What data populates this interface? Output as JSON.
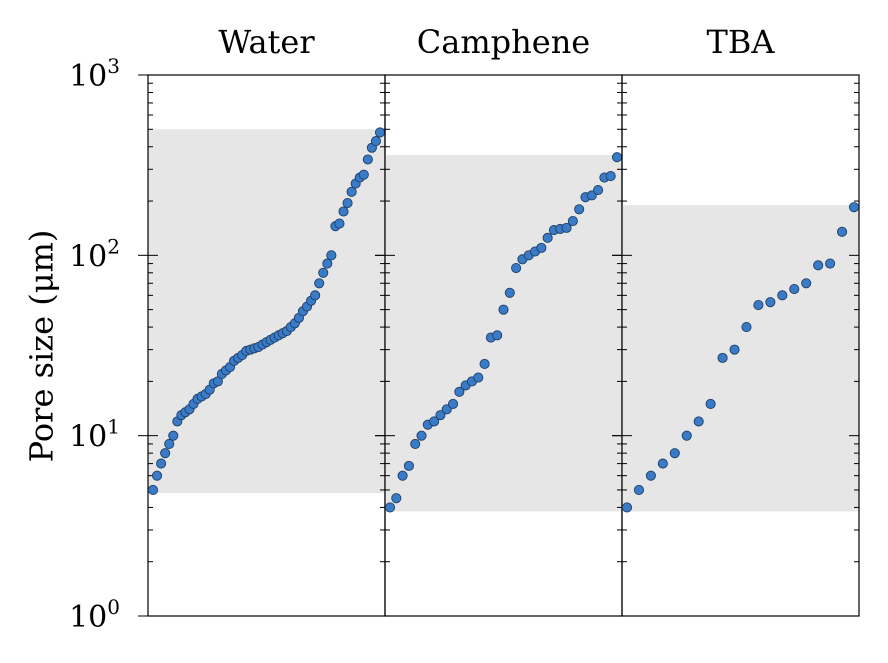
{
  "chart_data": {
    "type": "scatter",
    "y_scale": "log",
    "ylim": [
      1,
      1000
    ],
    "ylabel": "Pore size (μm)",
    "yticks": [
      {
        "value": 1,
        "base": "10",
        "exp": "0"
      },
      {
        "value": 10,
        "base": "10",
        "exp": "1"
      },
      {
        "value": 100,
        "base": "10",
        "exp": "2"
      },
      {
        "value": 1000,
        "base": "10",
        "exp": "3"
      }
    ],
    "marker_color": "#3a7bc8",
    "marker_edge_color": "#1f3f66",
    "band_color": "#e6e6e6",
    "panels": [
      {
        "title": "Water",
        "range": [
          4.8,
          500
        ],
        "values": [
          5,
          6,
          7,
          8,
          9,
          10,
          12,
          13,
          13.5,
          14,
          15,
          16,
          16.5,
          17,
          18,
          19.5,
          20,
          22,
          23,
          24,
          26,
          27,
          28,
          29.5,
          30,
          30.5,
          31,
          32,
          33,
          34,
          35,
          36,
          37,
          38,
          40,
          42,
          45,
          49,
          52,
          56,
          60,
          70,
          80,
          90,
          100,
          145,
          150,
          175,
          195,
          225,
          250,
          270,
          280,
          340,
          395,
          430,
          480
        ]
      },
      {
        "title": "Camphene",
        "range": [
          3.8,
          360
        ],
        "values": [
          4,
          4.5,
          6,
          6.8,
          9,
          10,
          11.5,
          12,
          13,
          14,
          15,
          17.5,
          19,
          20,
          21,
          25,
          35,
          36,
          50,
          62,
          85,
          95,
          100,
          105,
          110,
          125,
          138,
          140,
          142,
          155,
          180,
          210,
          215,
          230,
          270,
          275,
          350
        ]
      },
      {
        "title": "TBA",
        "range": [
          3.8,
          190
        ],
        "values": [
          4,
          5,
          6,
          7,
          8,
          10,
          12,
          15,
          27,
          30,
          40,
          53,
          55,
          60,
          65,
          70,
          88,
          90,
          135,
          185
        ]
      }
    ]
  }
}
